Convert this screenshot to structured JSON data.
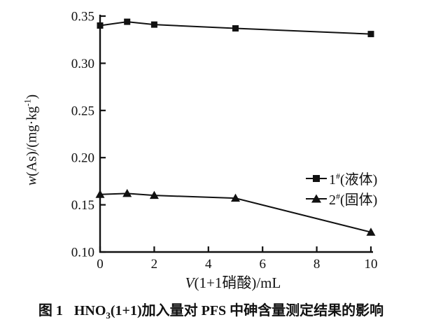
{
  "chart_data": {
    "type": "line",
    "x": [
      0,
      1,
      2,
      5,
      10
    ],
    "series": [
      {
        "name": "1#(液体)",
        "marker": "square",
        "color": "#111111",
        "values": [
          0.34,
          0.344,
          0.341,
          0.337,
          0.331
        ]
      },
      {
        "name": "2#(固体)",
        "marker": "triangle",
        "color": "#111111",
        "values": [
          0.161,
          0.162,
          0.16,
          0.157,
          0.121
        ]
      }
    ],
    "xlabel": "V(1+1硝酸)/mL",
    "ylabel": "w(As)/(mg·kg⁻¹)",
    "xlabel_parts": {
      "var": "V",
      "rest": "(1+1硝酸)/mL"
    },
    "ylabel_parts": {
      "var": "w",
      "mid": "(As)/(mg·kg",
      "sup": "-1",
      "end": ")"
    },
    "xlim": [
      0,
      10
    ],
    "ylim": [
      0.1,
      0.35
    ],
    "xticks": [
      0,
      2,
      4,
      6,
      8,
      10
    ],
    "xtick_labels": [
      "0",
      "2",
      "4",
      "6",
      "8",
      "10"
    ],
    "yticks": [
      0.1,
      0.15,
      0.2,
      0.25,
      0.3,
      0.35
    ],
    "ytick_labels": [
      "0.10",
      "0.15",
      "0.20",
      "0.25",
      "0.30",
      "0.35"
    ],
    "grid": false,
    "legend_position": "inside-right-middle",
    "line_color": "#111111",
    "background": "#ffffff"
  },
  "legend": {
    "items": [
      {
        "num": "1",
        "sup": "#",
        "name": "(液体)",
        "marker": "square"
      },
      {
        "num": "2",
        "sup": "#",
        "name": "(固体)",
        "marker": "triangle"
      }
    ]
  },
  "caption": {
    "fig_label": "图 1",
    "formula_pre": "HNO",
    "formula_sub": "3",
    "rest": "(1+1)加入量对 PFS 中砷含量测定结果的影响"
  }
}
